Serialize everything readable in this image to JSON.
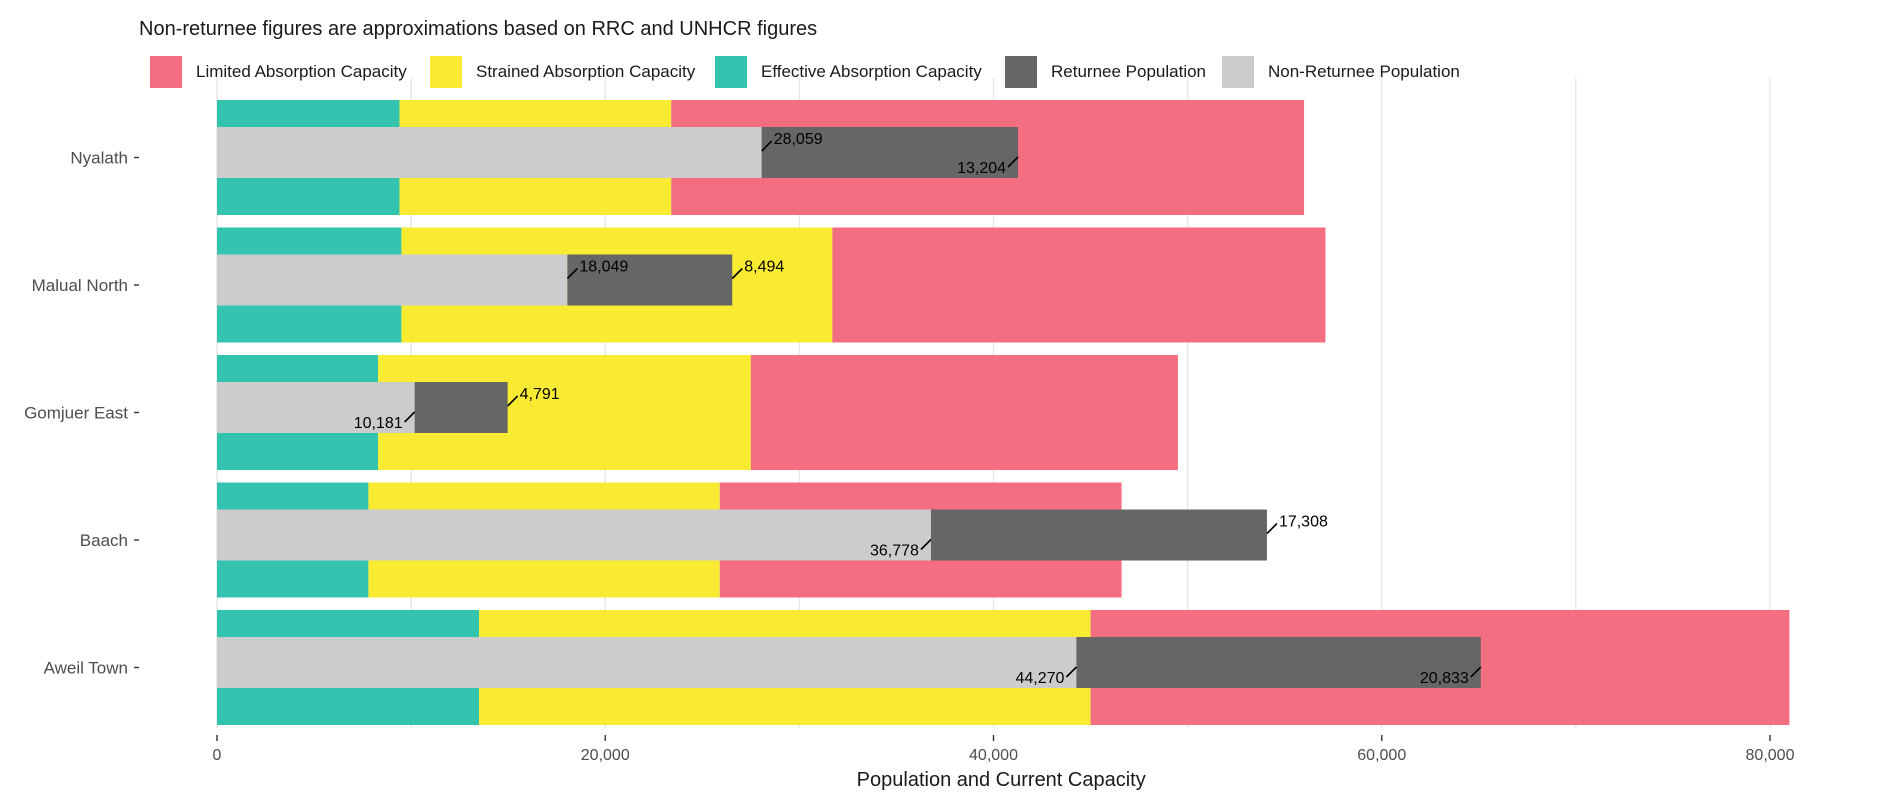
{
  "subtitle": "Non-returnee figures are approximations based on RRC and UNHCR figures",
  "legend": [
    {
      "label": "Limited Absorption Capacity",
      "color": "#F36E80"
    },
    {
      "label": "Strained Absorption Capacity",
      "color": "#F8EB32"
    },
    {
      "label": "Effective Absorption Capacity",
      "color": "#33C3AE"
    },
    {
      "label": "Returnee Population",
      "color": "#666666"
    },
    {
      "label": "Non-Returnee Population",
      "color": "#CCCCCC"
    }
  ],
  "chart_data": {
    "type": "bar",
    "orientation": "horizontal",
    "xlabel": "Population and Current Capacity",
    "ylabel": "",
    "xlim": [
      0,
      81000
    ],
    "xticks": [
      0,
      20000,
      40000,
      60000,
      80000
    ],
    "xtick_labels": [
      "0",
      "20,000",
      "40,000",
      "60,000",
      "80,000"
    ],
    "grid": true,
    "legend_position": "top",
    "categories": [
      "Nyalath",
      "Malual North",
      "Gomjuer East",
      "Baach",
      "Aweil Town"
    ],
    "capacity_series": [
      {
        "name": "Effective Absorption Capacity",
        "values": [
          9400,
          9500,
          8300,
          7800,
          13500
        ]
      },
      {
        "name": "Strained Absorption Capacity",
        "values": [
          14000,
          22200,
          19200,
          18100,
          31500
        ]
      },
      {
        "name": "Limited Absorption Capacity",
        "values": [
          32600,
          25400,
          22000,
          20700,
          36000
        ]
      }
    ],
    "population_series": [
      {
        "name": "Non-Returnee Population",
        "values": [
          28059,
          18049,
          10181,
          36778,
          44270
        ],
        "labels": [
          "28,059",
          "18,049",
          "10,181",
          "36,778",
          "44,270"
        ]
      },
      {
        "name": "Returnee Population",
        "values": [
          13204,
          8494,
          4791,
          17308,
          20833
        ],
        "labels": [
          "13,204",
          "8,494",
          "4,791",
          "17,308",
          "20,833"
        ]
      }
    ]
  }
}
